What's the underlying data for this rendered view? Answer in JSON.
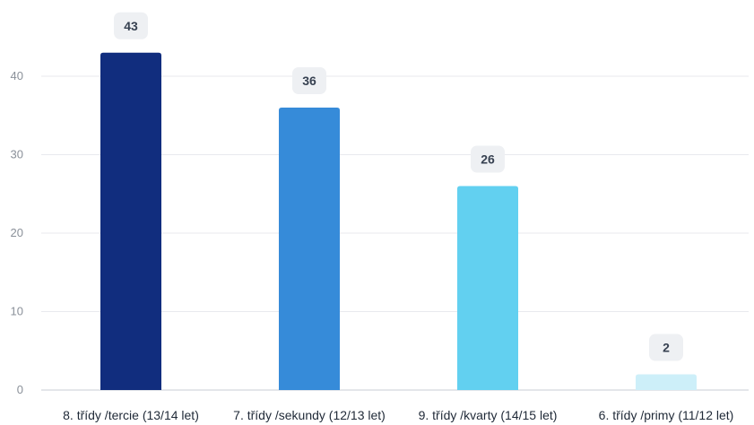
{
  "chart_data": {
    "type": "bar",
    "categories": [
      "8. třídy /tercie (13/14 let)",
      "7. třídy /sekundy (12/13 let)",
      "9. třídy /kvarty (14/15 let)",
      "6. třídy /primy (11/12 let)"
    ],
    "values": [
      43,
      36,
      26,
      2
    ],
    "value_labels": [
      "43",
      "36",
      "26",
      "2"
    ],
    "bar_colors": [
      "#112d7e",
      "#368bd9",
      "#62d0f0",
      "#cdeff9"
    ],
    "ylim": [
      0,
      45
    ],
    "yticks": [
      0,
      10,
      20,
      30,
      40
    ],
    "ytick_labels": [
      "0",
      "10",
      "20",
      "30",
      "40"
    ],
    "grid": true,
    "title": "",
    "xlabel": "",
    "ylabel": ""
  }
}
